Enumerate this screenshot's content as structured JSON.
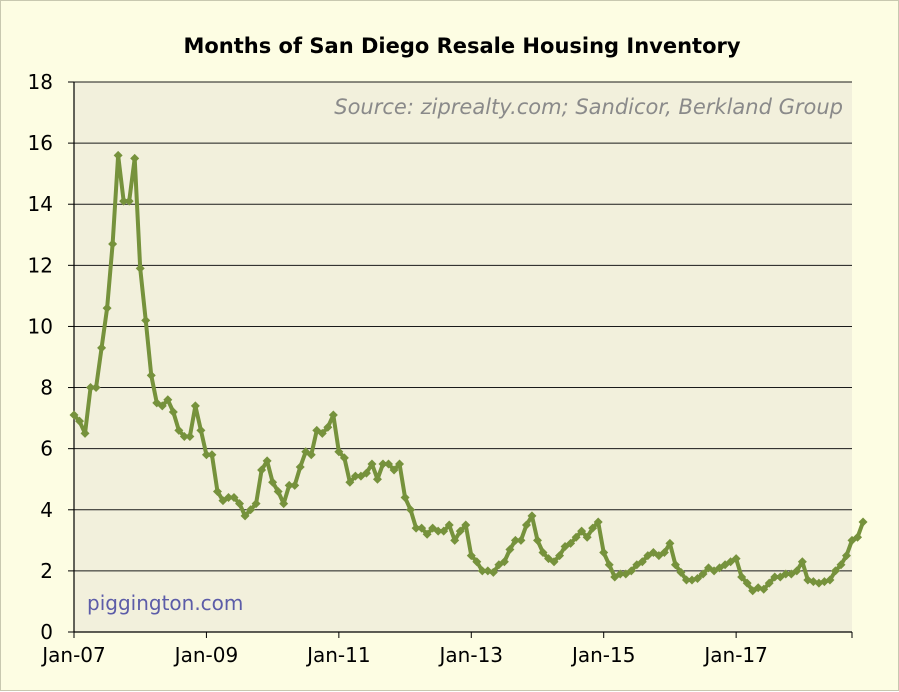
{
  "chart_data": {
    "type": "line",
    "title": "Months of San Diego Resale Housing Inventory",
    "annotation": "Source: ziprealty.com; Sandicor, Berkland Group",
    "watermark": "piggington.com",
    "xlabel": "",
    "ylabel": "",
    "ylim": [
      0,
      18
    ],
    "yticks": [
      0,
      2,
      4,
      6,
      8,
      10,
      12,
      14,
      16,
      18
    ],
    "xtick_labels": [
      "Jan-07",
      "Jan-09",
      "Jan-11",
      "Jan-13",
      "Jan-15",
      "Jan-17"
    ],
    "x_start": "Jan-07",
    "grid": true,
    "legend": "none",
    "line_color": "#76923c",
    "plot_background": "#f2f0dc",
    "series": [
      {
        "values": [
          7.1,
          6.9,
          6.5,
          8.0,
          8.0,
          9.3,
          10.6,
          12.7,
          15.6,
          14.1,
          14.1,
          15.5,
          11.9,
          10.2,
          8.4,
          7.5,
          7.4,
          7.6,
          7.2,
          6.6,
          6.4,
          6.4,
          7.4,
          6.6,
          5.8,
          5.8,
          4.6,
          4.3,
          4.4,
          4.4,
          4.2,
          3.8,
          4.0,
          4.2,
          5.3,
          5.6,
          4.9,
          4.6,
          4.2,
          4.8,
          4.8,
          5.4,
          5.9,
          5.8,
          6.6,
          6.5,
          6.7,
          7.1,
          5.9,
          5.7,
          4.9,
          5.1,
          5.1,
          5.2,
          5.5,
          5.0,
          5.5,
          5.5,
          5.3,
          5.5,
          4.4,
          4.0,
          3.4,
          3.4,
          3.2,
          3.4,
          3.3,
          3.3,
          3.5,
          3.0,
          3.3,
          3.5,
          2.5,
          2.3,
          2.0,
          2.0,
          1.95,
          2.2,
          2.3,
          2.7,
          3.0,
          3.0,
          3.5,
          3.8,
          3.0,
          2.6,
          2.4,
          2.3,
          2.5,
          2.8,
          2.9,
          3.1,
          3.3,
          3.1,
          3.4,
          3.6,
          2.6,
          2.2,
          1.8,
          1.9,
          1.9,
          2.0,
          2.2,
          2.3,
          2.5,
          2.6,
          2.5,
          2.6,
          2.9,
          2.2,
          1.95,
          1.7,
          1.7,
          1.75,
          1.9,
          2.1,
          2.0,
          2.1,
          2.2,
          2.3,
          2.4,
          1.8,
          1.6,
          1.35,
          1.45,
          1.4,
          1.6,
          1.8,
          1.8,
          1.9,
          1.9,
          2.0,
          2.3,
          1.7,
          1.65,
          1.6,
          1.65,
          1.7,
          2.0,
          2.2,
          2.5,
          3.0,
          3.1,
          3.6
        ]
      }
    ]
  }
}
